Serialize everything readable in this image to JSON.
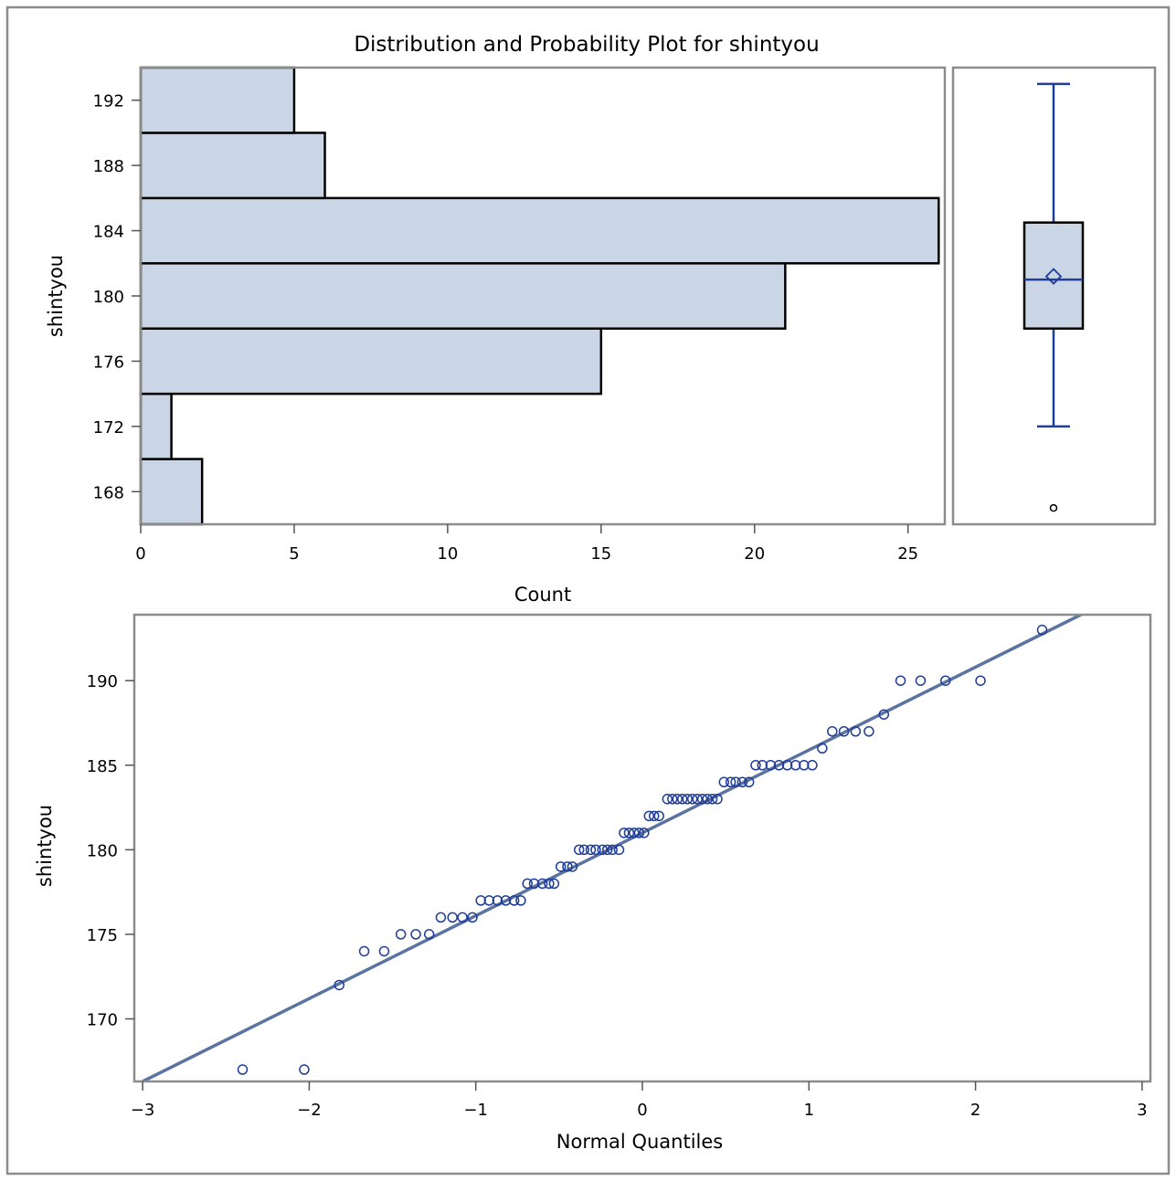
{
  "title": "Distribution and Probability Plot for shintyou",
  "chart_data": [
    {
      "type": "bar",
      "orientation": "horizontal",
      "xlabel": "Count",
      "ylabel": "shintyou",
      "xlim": [
        0,
        26.2
      ],
      "ylim": [
        166,
        194
      ],
      "xticks": [
        0,
        5,
        10,
        15,
        20,
        25
      ],
      "yticks": [
        168,
        172,
        176,
        180,
        184,
        188,
        192
      ],
      "bin_width": 4,
      "categories": [
        168,
        172,
        176,
        180,
        184,
        188,
        192
      ],
      "values": [
        2,
        1,
        15,
        21,
        26,
        6,
        5
      ],
      "bar_color": "#cad5e5",
      "grid": false
    },
    {
      "type": "box",
      "variable": "shintyou",
      "whisker_low": 172,
      "q1": 178,
      "median": 181,
      "mean": 181.2,
      "q3": 184.5,
      "whisker_high": 193,
      "outliers": [
        167
      ],
      "color": "#1f3d99"
    },
    {
      "type": "scatter",
      "xlabel": "Normal Quantiles",
      "ylabel": "shintyou",
      "xlim": [
        -3.05,
        3.05
      ],
      "ylim": [
        166.3,
        193.9
      ],
      "xticks": [
        -3,
        -2,
        -1,
        0,
        1,
        2,
        3
      ],
      "xtick_labels": [
        "−3",
        "−2",
        "−1",
        "0",
        "1",
        "2",
        "3"
      ],
      "yticks": [
        170,
        175,
        180,
        185,
        190
      ],
      "marker_color": "#1f3d99",
      "line_color": "#5a73a1",
      "reference_line": {
        "intercept": 181.0,
        "slope": 4.9
      },
      "grid": false,
      "points": [
        [
          -2.4,
          167
        ],
        [
          -2.03,
          167
        ],
        [
          -1.82,
          172
        ],
        [
          -1.67,
          174
        ],
        [
          -1.55,
          174
        ],
        [
          -1.45,
          175
        ],
        [
          -1.36,
          175
        ],
        [
          -1.28,
          175
        ],
        [
          -1.21,
          176
        ],
        [
          -1.14,
          176
        ],
        [
          -1.08,
          176
        ],
        [
          -1.02,
          176
        ],
        [
          -0.97,
          177
        ],
        [
          -0.92,
          177
        ],
        [
          -0.87,
          177
        ],
        [
          -0.82,
          177
        ],
        [
          -0.77,
          177
        ],
        [
          -0.73,
          177
        ],
        [
          -0.69,
          178
        ],
        [
          -0.65,
          178
        ],
        [
          -0.6,
          178
        ],
        [
          -0.56,
          178
        ],
        [
          -0.53,
          178
        ],
        [
          -0.49,
          179
        ],
        [
          -0.45,
          179
        ],
        [
          -0.42,
          179
        ],
        [
          -0.38,
          180
        ],
        [
          -0.35,
          180
        ],
        [
          -0.31,
          180
        ],
        [
          -0.28,
          180
        ],
        [
          -0.24,
          180
        ],
        [
          -0.21,
          180
        ],
        [
          -0.18,
          180
        ],
        [
          -0.14,
          180
        ],
        [
          -0.11,
          181
        ],
        [
          -0.08,
          181
        ],
        [
          -0.05,
          181
        ],
        [
          -0.02,
          181
        ],
        [
          0.01,
          181
        ],
        [
          0.04,
          182
        ],
        [
          0.07,
          182
        ],
        [
          0.1,
          182
        ],
        [
          0.15,
          183
        ],
        [
          0.18,
          183
        ],
        [
          0.21,
          183
        ],
        [
          0.24,
          183
        ],
        [
          0.27,
          183
        ],
        [
          0.3,
          183
        ],
        [
          0.33,
          183
        ],
        [
          0.36,
          183
        ],
        [
          0.39,
          183
        ],
        [
          0.42,
          183
        ],
        [
          0.45,
          183
        ],
        [
          0.49,
          184
        ],
        [
          0.53,
          184
        ],
        [
          0.56,
          184
        ],
        [
          0.6,
          184
        ],
        [
          0.64,
          184
        ],
        [
          0.68,
          185
        ],
        [
          0.72,
          185
        ],
        [
          0.77,
          185
        ],
        [
          0.82,
          185
        ],
        [
          0.87,
          185
        ],
        [
          0.92,
          185
        ],
        [
          0.97,
          185
        ],
        [
          1.02,
          185
        ],
        [
          1.08,
          186
        ],
        [
          1.14,
          187
        ],
        [
          1.21,
          187
        ],
        [
          1.28,
          187
        ],
        [
          1.36,
          187
        ],
        [
          1.45,
          188
        ],
        [
          1.55,
          190
        ],
        [
          1.67,
          190
        ],
        [
          1.82,
          190
        ],
        [
          2.03,
          190
        ],
        [
          2.4,
          193
        ]
      ]
    }
  ]
}
